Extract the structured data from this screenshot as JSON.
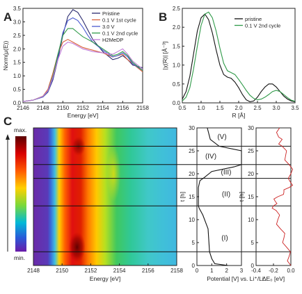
{
  "panel_labels": [
    "A",
    "B",
    "C"
  ],
  "colorbar": {
    "max_label": "max.",
    "min_label": "min."
  },
  "chart_data": [
    {
      "panel": "A",
      "type": "line",
      "xlabel": "Energy [eV]",
      "ylabel": "Norm(μ(E))",
      "xlim": [
        2146,
        2158
      ],
      "ylim": [
        0,
        3.5
      ],
      "xticks": [
        "2146",
        "2148",
        "2150",
        "2152",
        "2154",
        "2156",
        "2158"
      ],
      "yticks": [
        "0.0",
        "0.5",
        "1.0",
        "1.5",
        "2.0",
        "2.5",
        "3.0",
        "3.5"
      ],
      "legend_position": "top-right",
      "x": [
        2146,
        2147,
        2148,
        2148.5,
        2149,
        2149.5,
        2150,
        2150.5,
        2151,
        2151.5,
        2152,
        2152.5,
        2153,
        2154,
        2155,
        2155.5,
        2156,
        2156.5,
        2157,
        2158
      ],
      "series": [
        {
          "name": "Pristine",
          "color": "#2a2a6e",
          "values": [
            0.05,
            0.1,
            0.22,
            0.4,
            0.85,
            1.6,
            2.5,
            3.2,
            3.45,
            3.35,
            3.05,
            2.7,
            2.35,
            1.9,
            1.6,
            1.65,
            1.75,
            1.6,
            1.4,
            1.3
          ]
        },
        {
          "name": "0.1 V 1st cycle",
          "color": "#d9603a",
          "values": [
            0.05,
            0.1,
            0.25,
            0.5,
            1.1,
            1.8,
            2.25,
            2.35,
            2.25,
            2.15,
            2.05,
            2.0,
            1.95,
            1.85,
            1.7,
            1.75,
            1.8,
            1.6,
            1.45,
            1.15
          ]
        },
        {
          "name": "3.0 V",
          "color": "#4a5ad0",
          "values": [
            0.05,
            0.1,
            0.22,
            0.42,
            0.9,
            1.7,
            2.6,
            3.05,
            3.15,
            3.05,
            2.8,
            2.5,
            2.25,
            1.95,
            1.7,
            1.75,
            1.85,
            1.7,
            1.45,
            1.2
          ]
        },
        {
          "name": "0.1 V 2nd cycle",
          "color": "#2f9a48",
          "values": [
            0.05,
            0.1,
            0.24,
            0.45,
            1.0,
            1.8,
            2.5,
            2.75,
            2.75,
            2.6,
            2.45,
            2.35,
            2.25,
            2.0,
            1.75,
            1.8,
            1.9,
            1.75,
            1.5,
            1.2
          ]
        },
        {
          "name": "H2MeDP",
          "color": "#c07ad8",
          "values": [
            0.05,
            0.1,
            0.24,
            0.45,
            0.95,
            1.6,
            2.1,
            2.25,
            2.2,
            2.1,
            2.0,
            1.95,
            1.9,
            1.85,
            1.8,
            1.9,
            2.0,
            1.8,
            1.55,
            1.25
          ]
        }
      ]
    },
    {
      "panel": "B",
      "type": "line",
      "xlabel": "R [Å]",
      "ylabel": "|χ(R)| [Å⁻³]",
      "xlim": [
        0.5,
        3.5
      ],
      "ylim": [
        0,
        2.5
      ],
      "xticks": [
        "0.5",
        "1.0",
        "1.5",
        "2.0",
        "2.5",
        "3.0",
        "3.5"
      ],
      "yticks": [
        "0.0",
        "0.5",
        "1.0",
        "1.5",
        "2.0",
        "2.5"
      ],
      "legend_position": "top-right",
      "x": [
        0.5,
        0.6,
        0.7,
        0.8,
        0.9,
        1.0,
        1.1,
        1.2,
        1.3,
        1.4,
        1.5,
        1.6,
        1.7,
        1.8,
        1.9,
        2.0,
        2.1,
        2.2,
        2.3,
        2.4,
        2.5,
        2.6,
        2.7,
        2.8,
        2.9,
        3.0,
        3.1,
        3.2,
        3.3,
        3.4,
        3.5
      ],
      "series": [
        {
          "name": "pristine",
          "color": "#111111",
          "values": [
            0.1,
            0.3,
            0.7,
            1.3,
            1.9,
            2.25,
            2.35,
            2.2,
            1.85,
            1.4,
            1.0,
            0.75,
            0.68,
            0.65,
            0.55,
            0.4,
            0.22,
            0.08,
            0.03,
            0.05,
            0.15,
            0.3,
            0.42,
            0.5,
            0.5,
            0.42,
            0.3,
            0.18,
            0.1,
            0.05,
            0.03
          ]
        },
        {
          "name": "0.1 V 2nd cycle",
          "color": "#2f9a48",
          "values": [
            0.05,
            0.15,
            0.4,
            0.9,
            1.5,
            2.05,
            2.35,
            2.4,
            2.25,
            1.9,
            1.45,
            1.05,
            0.85,
            0.8,
            0.75,
            0.62,
            0.48,
            0.33,
            0.2,
            0.12,
            0.08,
            0.1,
            0.15,
            0.22,
            0.3,
            0.33,
            0.3,
            0.22,
            0.14,
            0.07,
            0.04
          ]
        }
      ]
    },
    {
      "panel": "C",
      "type": "heatmap",
      "xlabel": "Energy [eV]",
      "ylabel": "t [h]",
      "xlim": [
        2148,
        2158
      ],
      "ylim": [
        0,
        30
      ],
      "xticks": [
        "2148",
        "2150",
        "2152",
        "2154",
        "2156",
        "2158"
      ],
      "yticks": [
        "0",
        "5",
        "10",
        "15",
        "20",
        "25",
        "30"
      ],
      "description_lines_t_h": [
        3,
        13,
        19,
        22,
        26
      ],
      "intensity_peak_eV": 2151,
      "regions": [
        "(I)",
        "(II)",
        "(III)",
        "(IV)",
        "(V)"
      ]
    },
    {
      "panel": "C-potential",
      "type": "line",
      "xlabel": "Potential [V] vs. Li⁺/Li",
      "ylabel": "t [h]",
      "xlim": [
        0,
        3
      ],
      "ylim": [
        0,
        30
      ],
      "xticks": [
        "0",
        "1",
        "2",
        "3"
      ],
      "yticks": [
        "0",
        "5",
        "10",
        "15",
        "20",
        "25",
        "30"
      ],
      "series": [
        {
          "name": "potential",
          "x_V": [
            2.1,
            1.2,
            1.0,
            0.85,
            0.75,
            0.4,
            0.15,
            0.1,
            0.1,
            0.2,
            0.5,
            1.0,
            2.5,
            3.0,
            3.0,
            3.0,
            1.5,
            0.9,
            0.7
          ],
          "t_h": [
            0,
            0.4,
            1.5,
            3.0,
            8.0,
            11.0,
            12.5,
            13.0,
            17.0,
            18.5,
            19.2,
            20.5,
            21.5,
            22.0,
            24.0,
            25.0,
            26.0,
            27.5,
            30.0
          ]
        }
      ]
    },
    {
      "panel": "C-edge-shift",
      "type": "line",
      "xlabel": "ΔE₀ [eV]",
      "ylabel": "t [h]",
      "xlim": [
        -0.4,
        0.0
      ],
      "ylim": [
        0,
        30
      ],
      "xticks": [
        "-0.4",
        "-0.2",
        "0.0"
      ],
      "yticks": [
        "0",
        "5",
        "10",
        "15",
        "20",
        "25",
        "30"
      ],
      "series": [
        {
          "name": "edge shift",
          "color": "#cc2222",
          "x_eV": [
            0.0,
            -0.02,
            -0.05,
            -0.08,
            -0.12,
            -0.15,
            -0.17,
            -0.2,
            -0.18,
            -0.15,
            -0.08,
            -0.02,
            0.0,
            0.0,
            -0.02,
            -0.06,
            -0.1,
            -0.12,
            -0.14,
            -0.13
          ],
          "t_h": [
            0,
            2,
            4,
            6,
            8,
            10,
            12,
            13,
            14,
            15,
            16,
            17,
            18,
            20,
            22,
            24,
            26,
            27,
            28,
            30
          ]
        }
      ]
    }
  ]
}
